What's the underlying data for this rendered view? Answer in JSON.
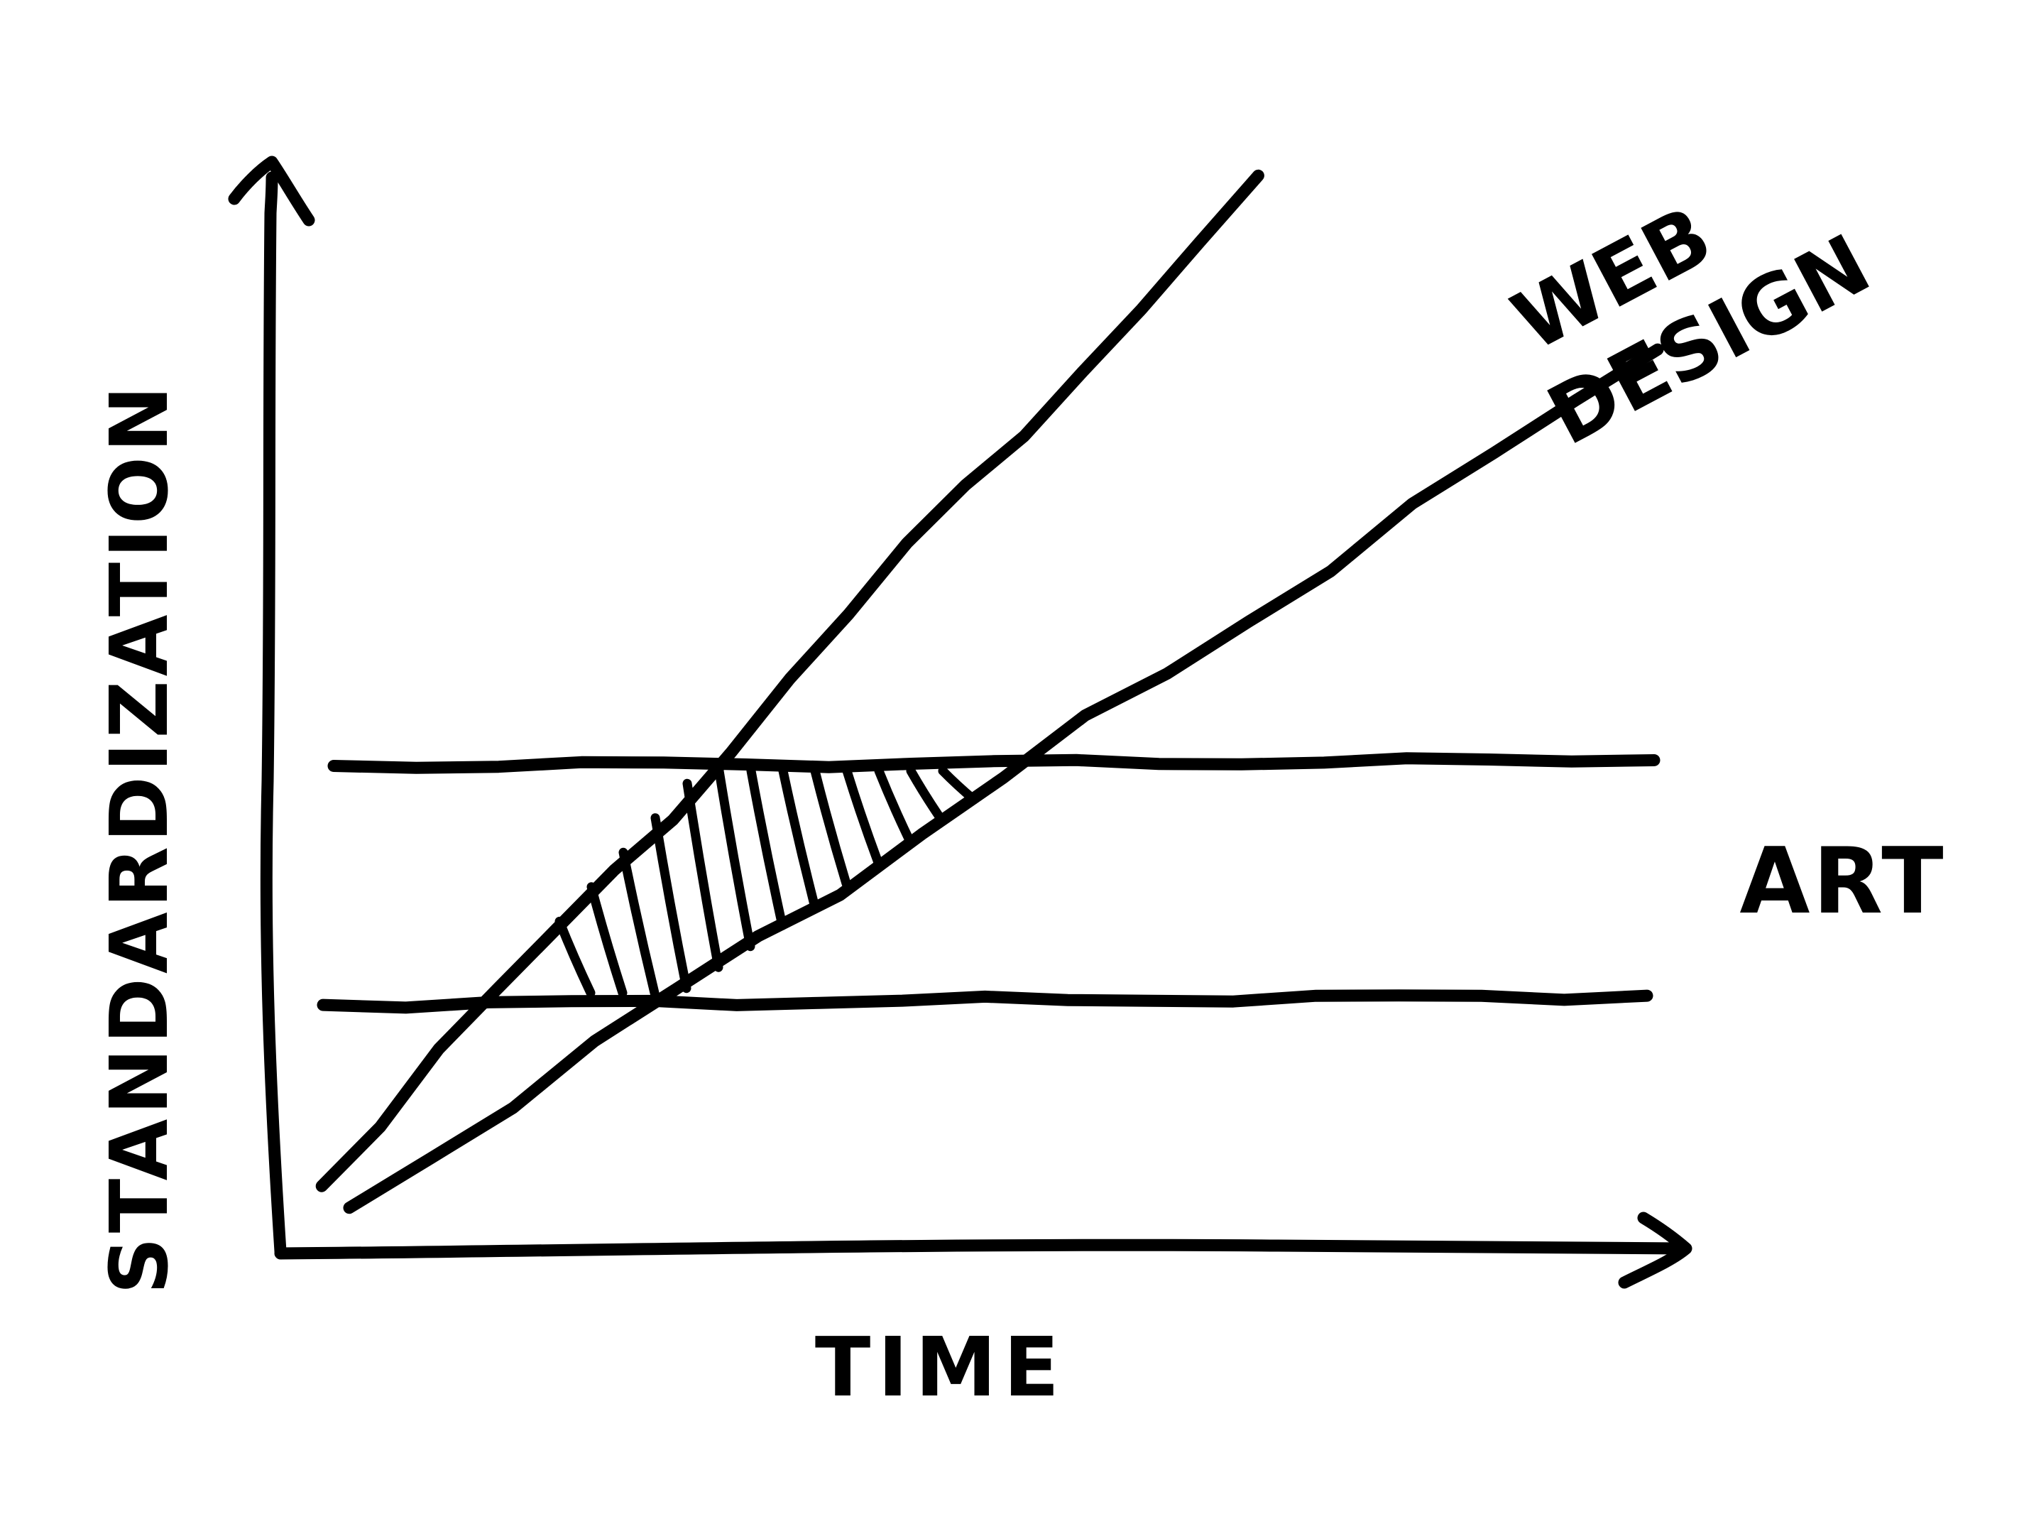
{
  "chart_data": {
    "type": "line",
    "title": "",
    "xlabel": "TIME",
    "ylabel": "STANDARDIZATION",
    "grid": false,
    "legend": "none",
    "ink_color": "#000000",
    "background_color": "#ffffff",
    "series": [
      {
        "name": "WEB DESIGN",
        "kind": "trend-band",
        "lower": {
          "x": [
            0.05,
            1.0
          ],
          "y": [
            0.04,
            0.83
          ]
        },
        "upper": {
          "x": [
            0.03,
            0.71
          ],
          "y": [
            0.06,
            0.99
          ]
        }
      },
      {
        "name": "ART",
        "kind": "horizontal-band",
        "lower": 0.23,
        "upper": 0.45
      }
    ],
    "annotations": [
      {
        "label": "overlap",
        "style": "hatched",
        "description": "region where web design band lies inside the art band"
      }
    ],
    "xlim": [
      0,
      1
    ],
    "ylim": [
      0,
      1
    ]
  }
}
